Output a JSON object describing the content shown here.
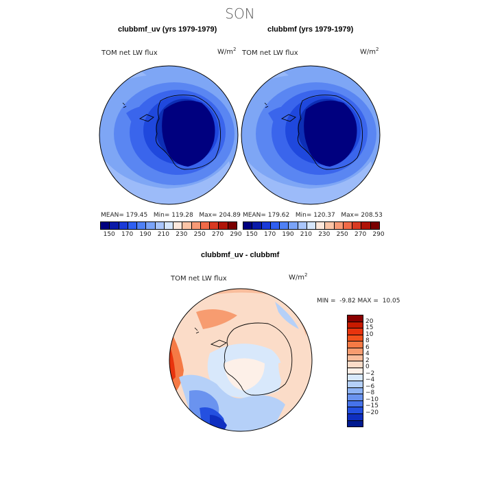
{
  "season": "SON",
  "panels": [
    {
      "title": "clubbmf_uv (yrs 1979-1979)",
      "variable": "TOM net LW flux",
      "unit_base": "W/m",
      "unit_exp": "2",
      "mean_label": "MEAN=",
      "mean": "179.45",
      "min_label": "Min=",
      "min": "119.28",
      "max_label": "Max=",
      "max": "204.89"
    },
    {
      "title": "clubbmf (yrs 1979-1979)",
      "variable": "TOM net LW flux",
      "unit_base": "W/m",
      "unit_exp": "2",
      "mean_label": "MEAN=",
      "mean": "179.62",
      "min_label": "Min=",
      "min": "120.37",
      "max_label": "Max=",
      "max": "208.53"
    }
  ],
  "abs_colorbar": {
    "colors": [
      "#00007f",
      "#0a1aa8",
      "#1a3ad8",
      "#2f5ff0",
      "#4f80f5",
      "#7aa3f8",
      "#a9c5fb",
      "#d6e6fc",
      "#fde8dc",
      "#fbc4a6",
      "#f89a76",
      "#f06a48",
      "#d93a22",
      "#b01408",
      "#7a0000"
    ],
    "tick_labels": [
      "150",
      "170",
      "190",
      "210",
      "230",
      "250",
      "270",
      "290"
    ]
  },
  "diff": {
    "title": "clubbmf_uv - clubbmf",
    "variable": "TOM net LW flux",
    "unit_base": "W/m",
    "unit_exp": "2",
    "min_label": "MIN =",
    "min": "-9.82",
    "max_label": "MAX =",
    "max": "10.05"
  },
  "diff_colorbar": {
    "colors_top_to_bottom": [
      "#8a0000",
      "#c81a00",
      "#e8340e",
      "#f2521d",
      "#f57a45",
      "#f79c70",
      "#f9bd9c",
      "#fbdcc8",
      "#fdf0e8",
      "#d8e8fb",
      "#b5d0f8",
      "#8eb3f4",
      "#6a93ef",
      "#4673ea",
      "#2450e0",
      "#0f2fc0",
      "#001a90"
    ],
    "tick_labels": [
      "20",
      "15",
      "10",
      "8",
      "6",
      "4",
      "2",
      "0",
      "−2",
      "−4",
      "−6",
      "−8",
      "−10",
      "−15",
      "−20"
    ]
  }
}
